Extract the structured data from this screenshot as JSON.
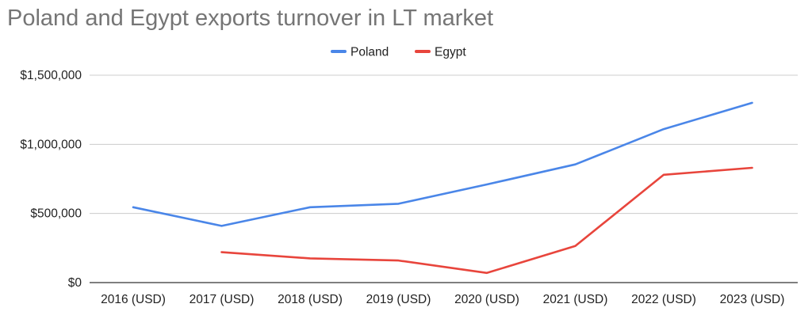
{
  "chart_data": {
    "type": "line",
    "title": "Poland and Egypt exports turnover in LT market",
    "xlabel": "",
    "ylabel": "",
    "categories": [
      "2016 (USD)",
      "2017 (USD)",
      "2018 (USD)",
      "2019 (USD)",
      "2020 (USD)",
      "2021 (USD)",
      "2022 (USD)",
      "2023 (USD)"
    ],
    "y_ticks": [
      0,
      500000,
      1000000,
      1500000
    ],
    "y_tick_labels": [
      "$0",
      "$500,000",
      "$1,000,000",
      "$1,500,000"
    ],
    "ylim": [
      0,
      1500000
    ],
    "grid": true,
    "legend_position": "top",
    "series": [
      {
        "name": "Poland",
        "color": "#4a86e8",
        "values": [
          545000,
          410000,
          545000,
          570000,
          710000,
          855000,
          1110000,
          1300000
        ]
      },
      {
        "name": "Egypt",
        "color": "#e8453c",
        "values": [
          null,
          220000,
          175000,
          160000,
          70000,
          265000,
          780000,
          830000
        ]
      }
    ]
  }
}
